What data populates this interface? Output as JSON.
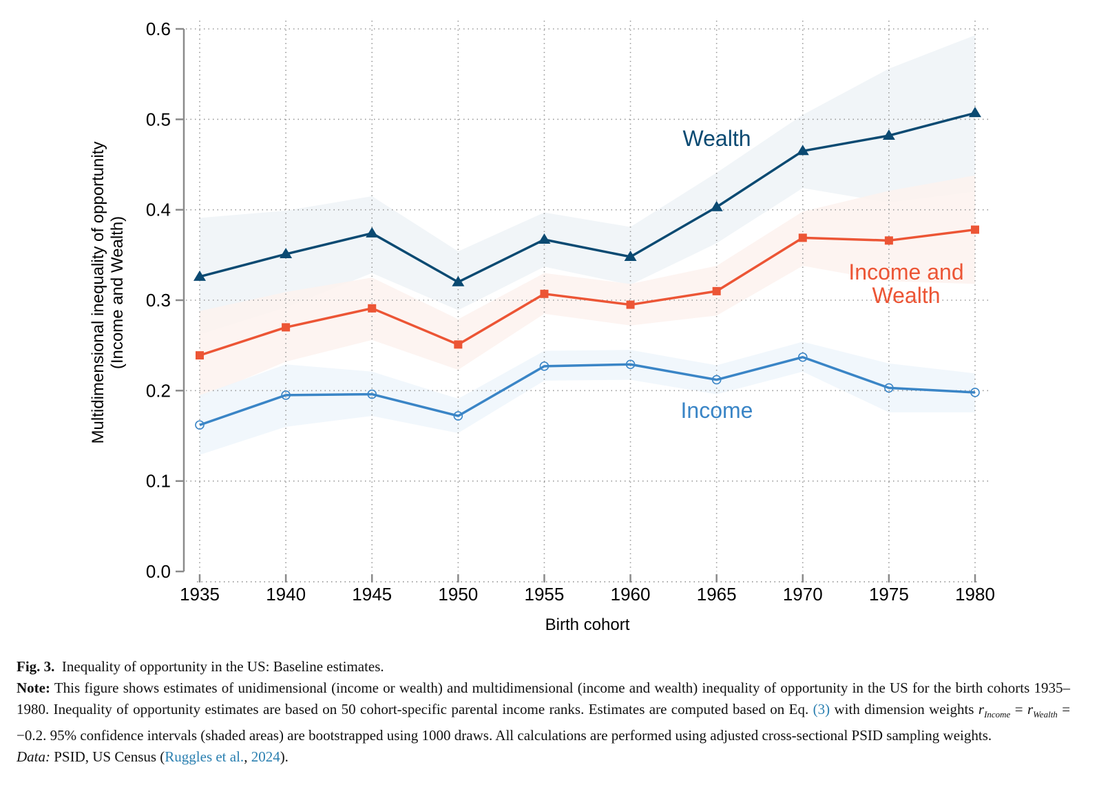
{
  "chart_data": {
    "type": "line",
    "title": "",
    "xlabel": "Birth cohort",
    "ylabel": "Multidimensional inequality of opportunity",
    "ylabel2": "(Income and Wealth)",
    "x": [
      1935,
      1940,
      1945,
      1950,
      1955,
      1960,
      1965,
      1970,
      1975,
      1980
    ],
    "xticks": [
      "1935",
      "1940",
      "1945",
      "1950",
      "1955",
      "1960",
      "1965",
      "1970",
      "1975",
      "1980"
    ],
    "yticks": [
      "0.0",
      "0.1",
      "0.2",
      "0.3",
      "0.4",
      "0.5",
      "0.6"
    ],
    "ylim": [
      0,
      0.6
    ],
    "grid": true,
    "legend": "inline labels",
    "series": [
      {
        "name": "Wealth",
        "label": "Wealth",
        "color": "#0b4a72",
        "band": "#eef3f7",
        "marker": "triangle",
        "values": [
          0.326,
          0.351,
          0.374,
          0.32,
          0.367,
          0.348,
          0.403,
          0.465,
          0.482,
          0.507
        ],
        "lower": [
          0.262,
          0.292,
          0.33,
          0.289,
          0.337,
          0.317,
          0.363,
          0.424,
          0.408,
          0.42
        ],
        "upper": [
          0.391,
          0.399,
          0.415,
          0.354,
          0.397,
          0.381,
          0.441,
          0.505,
          0.556,
          0.593
        ]
      },
      {
        "name": "Income and Wealth",
        "label_lines": [
          "Income and",
          "Wealth"
        ],
        "color": "#ec5535",
        "band": "#fdf2ef",
        "marker": "square",
        "values": [
          0.239,
          0.27,
          0.291,
          0.251,
          0.307,
          0.295,
          0.31,
          0.369,
          0.366,
          0.378
        ],
        "lower": [
          0.192,
          0.232,
          0.256,
          0.223,
          0.285,
          0.272,
          0.283,
          0.338,
          0.321,
          0.318
        ],
        "upper": [
          0.288,
          0.309,
          0.325,
          0.279,
          0.33,
          0.318,
          0.338,
          0.398,
          0.421,
          0.438
        ]
      },
      {
        "name": "Income",
        "label": "Income",
        "color": "#3a85c6",
        "band": "#eef6fb",
        "marker": "circle",
        "values": [
          0.162,
          0.195,
          0.196,
          0.172,
          0.227,
          0.229,
          0.212,
          0.237,
          0.203,
          0.198
        ],
        "lower": [
          0.129,
          0.16,
          0.172,
          0.153,
          0.211,
          0.212,
          0.196,
          0.221,
          0.176,
          0.176
        ],
        "upper": [
          0.195,
          0.229,
          0.221,
          0.191,
          0.244,
          0.245,
          0.228,
          0.254,
          0.23,
          0.219
        ]
      }
    ]
  },
  "caption": {
    "fig_label": "Fig. 3.",
    "fig_title": "Inequality of opportunity in the US: Baseline estimates.",
    "note_label": "Note:",
    "note_part1": "This figure shows estimates of unidimensional (income or wealth) and multidimensional (income and wealth) inequality of opportunity in the US for the birth cohorts 1935–1980. Inequality of opportunity estimates are based on 50 cohort-specific parental income ranks. Estimates are computed based on Eq.",
    "eq_link": "(3)",
    "note_part2": "with dimension weights",
    "r1": "r",
    "r1_sub": "Income",
    "eq_sign": "=",
    "r2": "r",
    "r2_sub": "Wealth",
    "note_part3": "= −0.2. 95% confidence intervals (shaded areas) are bootstrapped using 1000 draws. All calculations are performed using adjusted cross-sectional PSID sampling weights.",
    "data_label": "Data:",
    "data_text": "PSID, US Census (",
    "ref_link": "Ruggles et al.",
    "ref_sep": ", ",
    "year_link": "2024",
    "data_end": ")."
  }
}
